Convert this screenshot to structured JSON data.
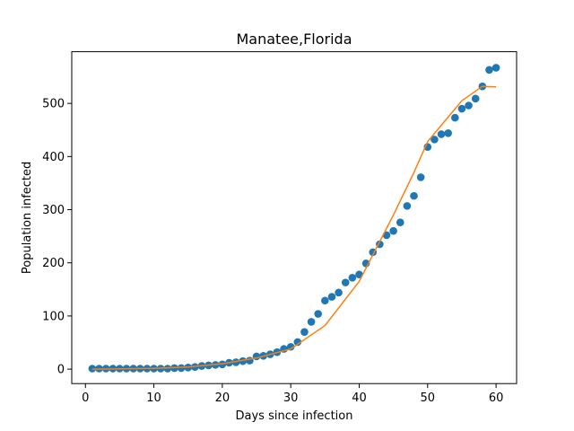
{
  "chart_data": {
    "type": "scatter",
    "title": "Manatee,Florida",
    "xlabel": "Days since infection",
    "ylabel": "Population infected",
    "xlim": [
      -2,
      63
    ],
    "ylim": [
      -27.2,
      597.2
    ],
    "xticks": [
      0,
      10,
      20,
      30,
      40,
      50,
      60
    ],
    "yticks": [
      0,
      100,
      200,
      300,
      400,
      500
    ],
    "grid": false,
    "legend": null,
    "colors": {
      "observed": "#1f77b4",
      "fit": "#ff7f0e"
    },
    "series": [
      {
        "kind": "scatter",
        "x": [
          1,
          2,
          3,
          4,
          5,
          6,
          7,
          8,
          9,
          10,
          11,
          12,
          13,
          14,
          15,
          16,
          17,
          18,
          19,
          20,
          21,
          22,
          23,
          24,
          25,
          26,
          27,
          28,
          29,
          30,
          31,
          32,
          33,
          34,
          35,
          36,
          37,
          38,
          39,
          40,
          41,
          42,
          43,
          44,
          45,
          46,
          47,
          48,
          49,
          50,
          51,
          52,
          53,
          54,
          55,
          56,
          57,
          58,
          59,
          60
        ],
        "y": [
          1,
          1,
          1,
          1,
          1,
          1,
          1,
          1,
          1,
          1,
          1,
          1,
          2,
          2,
          3,
          4,
          6,
          7,
          8,
          9,
          12,
          13,
          15,
          16,
          24,
          25,
          28,
          32,
          38,
          42,
          51,
          70,
          89,
          104,
          129,
          136,
          144,
          163,
          172,
          178,
          199,
          220,
          235,
          252,
          260,
          276,
          307,
          326,
          361,
          418,
          432,
          442,
          444,
          473,
          490,
          496,
          509,
          532,
          563,
          567
        ]
      },
      {
        "kind": "line",
        "x": [
          1,
          5,
          10,
          15,
          20,
          25,
          30,
          35,
          40,
          45,
          48,
          50,
          55,
          58,
          60
        ],
        "y": [
          0,
          0.5,
          1.5,
          4,
          10,
          21,
          38,
          82,
          165,
          290,
          370,
          428,
          505,
          532,
          531
        ]
      }
    ]
  }
}
